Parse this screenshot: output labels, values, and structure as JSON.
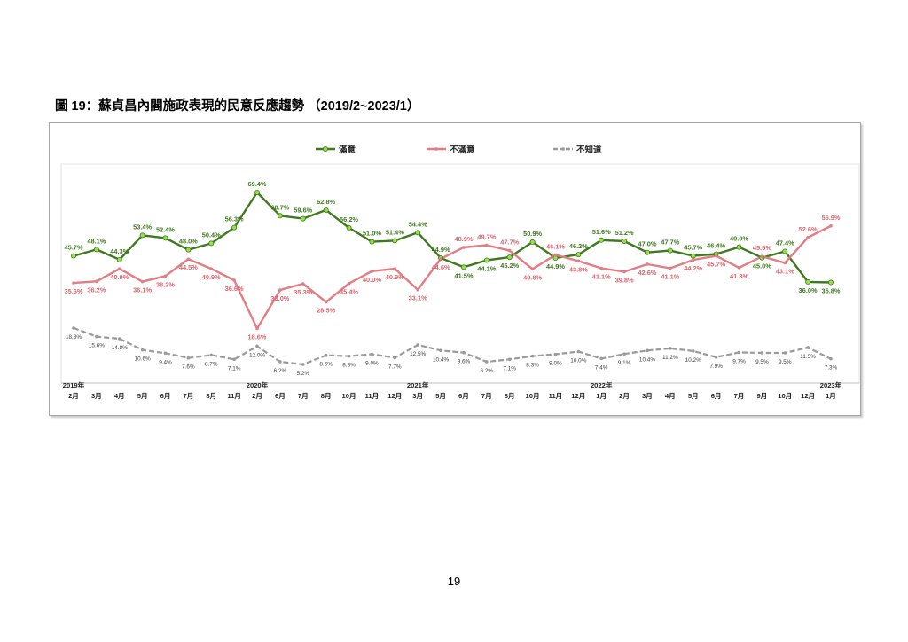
{
  "page": {
    "title": "圖 19：蘇貞昌內閣施政表現的民意反應趨勢 （2019/2~2023/1）",
    "page_number": "19"
  },
  "colors": {
    "satisfied": "#3d7a1e",
    "satisfied_marker": "#9be04a",
    "dissatisfied": "#e47c84",
    "unknown": "#9a9a9a"
  },
  "chart_data": {
    "type": "line",
    "title": "",
    "legend_position": "top",
    "grid": false,
    "ylim": [
      0,
      75
    ],
    "categories": [
      "2月",
      "3月",
      "4月",
      "5月",
      "6月",
      "7月",
      "8月",
      "11月",
      "2月",
      "6月",
      "7月",
      "8月",
      "10月",
      "11月",
      "12月",
      "3月",
      "5月",
      "6月",
      "7月",
      "8月",
      "10月",
      "11月",
      "12月",
      "1月",
      "2月",
      "3月",
      "4月",
      "5月",
      "6月",
      "7月",
      "9月",
      "10月",
      "12月",
      "1月"
    ],
    "year_labels": [
      {
        "index": 0,
        "label": "2019年"
      },
      {
        "index": 8,
        "label": "2020年"
      },
      {
        "index": 15,
        "label": "2021年"
      },
      {
        "index": 23,
        "label": "2022年"
      },
      {
        "index": 33,
        "label": "2023年"
      }
    ],
    "series": [
      {
        "name": "滿意",
        "color": "#3d7a1e",
        "dashed": false,
        "values": [
          45.7,
          48.1,
          44.3,
          53.4,
          52.4,
          48.0,
          50.4,
          56.3,
          69.4,
          60.7,
          59.6,
          62.8,
          56.2,
          51.0,
          51.4,
          54.4,
          44.9,
          41.5,
          44.1,
          45.2,
          50.9,
          44.9,
          46.2,
          51.6,
          51.2,
          47.0,
          47.7,
          45.7,
          46.4,
          49.0,
          45.0,
          47.4,
          36.0,
          35.8
        ]
      },
      {
        "name": "不滿意",
        "color": "#e47c84",
        "dashed": false,
        "values": [
          35.6,
          36.2,
          40.9,
          36.1,
          38.2,
          44.5,
          40.9,
          36.6,
          18.6,
          33.0,
          35.3,
          28.5,
          35.4,
          40.0,
          40.9,
          33.1,
          44.6,
          48.9,
          49.7,
          47.7,
          40.8,
          46.1,
          43.8,
          41.1,
          39.8,
          42.6,
          41.1,
          44.2,
          45.7,
          41.3,
          45.5,
          43.1,
          52.6,
          56.9
        ]
      },
      {
        "name": "不知道",
        "color": "#9a9a9a",
        "dashed": true,
        "values": [
          18.8,
          15.6,
          14.8,
          10.6,
          9.4,
          7.6,
          8.7,
          7.1,
          12.0,
          6.2,
          5.2,
          8.6,
          8.3,
          9.0,
          7.7,
          12.5,
          10.4,
          9.6,
          6.2,
          7.1,
          8.3,
          9.0,
          10.0,
          7.4,
          9.1,
          10.4,
          11.2,
          10.2,
          7.9,
          9.7,
          9.5,
          9.5,
          11.5,
          7.3
        ]
      }
    ]
  }
}
